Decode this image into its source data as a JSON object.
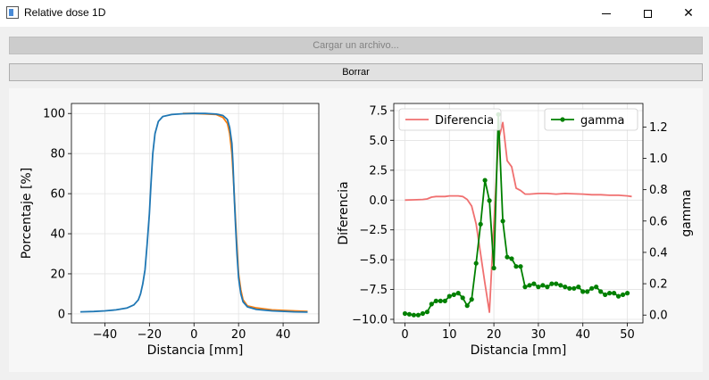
{
  "window": {
    "title": "Relative dose 1D",
    "icon": "app-window-icon",
    "controls": {
      "minimize_icon": "minimize-icon",
      "maximize_icon": "maximize-icon",
      "close_icon": "close-icon"
    }
  },
  "toolbar": {
    "load_label": "Cargar un archivo...",
    "clear_label": "Borrar"
  },
  "chart_data": [
    {
      "type": "line",
      "xlabel": "Distancia [mm]",
      "ylabel": "Porcentaje [%]",
      "xlim": [
        -55,
        56
      ],
      "ylim": [
        -4.5,
        105
      ],
      "xticks": [
        -40,
        -20,
        0,
        20,
        40
      ],
      "yticks": [
        0,
        20,
        40,
        60,
        80,
        100
      ],
      "grid": true,
      "series": [
        {
          "color": "#ff7f0e",
          "points": [
            [
              -5,
              100
            ],
            [
              0,
              100
            ],
            [
              5,
              99.8
            ],
            [
              10,
              99.5
            ],
            [
              13,
              98
            ],
            [
              15,
              95
            ],
            [
              16,
              90
            ],
            [
              17,
              80
            ],
            [
              17.8,
              65
            ],
            [
              18.5,
              50
            ],
            [
              19.2,
              35
            ],
            [
              20,
              20
            ],
            [
              21,
              12
            ],
            [
              22,
              7
            ],
            [
              24,
              4
            ],
            [
              28,
              3
            ],
            [
              35,
              2
            ],
            [
              45,
              1.5
            ],
            [
              51,
              1.2
            ]
          ]
        },
        {
          "color": "#1f77b4",
          "points": [
            [
              -51,
              1
            ],
            [
              -45,
              1.2
            ],
            [
              -40,
              1.5
            ],
            [
              -35,
              2
            ],
            [
              -30,
              3
            ],
            [
              -27,
              4.5
            ],
            [
              -25,
              7
            ],
            [
              -24,
              10
            ],
            [
              -23,
              15
            ],
            [
              -22,
              22
            ],
            [
              -21,
              35
            ],
            [
              -20,
              50
            ],
            [
              -19.3,
              65
            ],
            [
              -18.5,
              80
            ],
            [
              -17.5,
              90
            ],
            [
              -16,
              96
            ],
            [
              -14,
              98.5
            ],
            [
              -10,
              99.5
            ],
            [
              -5,
              99.9
            ],
            [
              0,
              100
            ],
            [
              5,
              100
            ],
            [
              10,
              99.7
            ],
            [
              13,
              99
            ],
            [
              15,
              97
            ],
            [
              16,
              93
            ],
            [
              17,
              85
            ],
            [
              17.5,
              75
            ],
            [
              18,
              60
            ],
            [
              18.6,
              45
            ],
            [
              19.3,
              30
            ],
            [
              20,
              18
            ],
            [
              21,
              10
            ],
            [
              22,
              6
            ],
            [
              24,
              3.5
            ],
            [
              28,
              2.2
            ],
            [
              35,
              1.5
            ],
            [
              45,
              1
            ],
            [
              51,
              0.9
            ]
          ]
        }
      ]
    },
    {
      "type": "line",
      "xlabel": "Distancia [mm]",
      "ylabel": "Diferencia",
      "ylabel_right": "gamma",
      "xlim": [
        -2.5,
        53.5
      ],
      "ylim": [
        -10.3,
        8.1
      ],
      "ylim_right": [
        -0.05,
        1.35
      ],
      "xticks": [
        0,
        10,
        20,
        30,
        40,
        50
      ],
      "yticks": [
        -10.0,
        -7.5,
        -5.0,
        -2.5,
        0.0,
        2.5,
        5.0,
        7.5
      ],
      "yticks_right": [
        0.0,
        0.2,
        0.4,
        0.6,
        0.8,
        1.0,
        1.2
      ],
      "grid": true,
      "legend": [
        {
          "label": "Diferencia",
          "placement": "top-left"
        },
        {
          "label": "gamma",
          "placement": "top-right"
        }
      ],
      "series": [
        {
          "name": "Diferencia",
          "color": "#f07070",
          "axis": "left",
          "points": [
            [
              0,
              0
            ],
            [
              2,
              0.02
            ],
            [
              4,
              0.05
            ],
            [
              5,
              0.1
            ],
            [
              6,
              0.25
            ],
            [
              7,
              0.3
            ],
            [
              9,
              0.3
            ],
            [
              10,
              0.35
            ],
            [
              12,
              0.35
            ],
            [
              13,
              0.3
            ],
            [
              14,
              0.05
            ],
            [
              15,
              -0.5
            ],
            [
              16,
              -2
            ],
            [
              17,
              -4.5
            ],
            [
              18,
              -7
            ],
            [
              19,
              -9.4
            ],
            [
              20,
              -2
            ],
            [
              21,
              5
            ],
            [
              22,
              6.5
            ],
            [
              23,
              3.3
            ],
            [
              24,
              2.8
            ],
            [
              25,
              1
            ],
            [
              26,
              0.8
            ],
            [
              27,
              0.5
            ],
            [
              28,
              0.5
            ],
            [
              30,
              0.55
            ],
            [
              32,
              0.55
            ],
            [
              34,
              0.5
            ],
            [
              36,
              0.55
            ],
            [
              40,
              0.5
            ],
            [
              42,
              0.45
            ],
            [
              44,
              0.45
            ],
            [
              46,
              0.4
            ],
            [
              48,
              0.4
            ],
            [
              50,
              0.35
            ],
            [
              51,
              0.3
            ]
          ]
        },
        {
          "name": "gamma",
          "color": "#008000",
          "axis": "right",
          "points": [
            [
              0,
              0.01
            ],
            [
              1,
              0.005
            ],
            [
              2,
              0.0
            ],
            [
              3,
              0.0
            ],
            [
              4,
              0.01
            ],
            [
              5,
              0.02
            ],
            [
              6,
              0.07
            ],
            [
              7,
              0.09
            ],
            [
              8,
              0.09
            ],
            [
              9,
              0.09
            ],
            [
              10,
              0.12
            ],
            [
              11,
              0.13
            ],
            [
              12,
              0.14
            ],
            [
              13,
              0.11
            ],
            [
              14,
              0.06
            ],
            [
              15,
              0.1
            ],
            [
              16,
              0.33
            ],
            [
              17,
              0.58
            ],
            [
              18,
              0.86
            ],
            [
              19,
              0.73
            ],
            [
              20,
              0.3
            ],
            [
              21,
              1.28
            ],
            [
              22,
              0.6
            ],
            [
              23,
              0.37
            ],
            [
              24,
              0.36
            ],
            [
              25,
              0.31
            ],
            [
              26,
              0.31
            ],
            [
              27,
              0.18
            ],
            [
              28,
              0.19
            ],
            [
              29,
              0.2
            ],
            [
              30,
              0.18
            ],
            [
              31,
              0.19
            ],
            [
              32,
              0.18
            ],
            [
              33,
              0.2
            ],
            [
              34,
              0.2
            ],
            [
              35,
              0.19
            ],
            [
              36,
              0.18
            ],
            [
              37,
              0.17
            ],
            [
              38,
              0.17
            ],
            [
              39,
              0.18
            ],
            [
              40,
              0.15
            ],
            [
              41,
              0.15
            ],
            [
              42,
              0.17
            ],
            [
              43,
              0.18
            ],
            [
              44,
              0.15
            ],
            [
              45,
              0.13
            ],
            [
              46,
              0.14
            ],
            [
              47,
              0.14
            ],
            [
              48,
              0.12
            ],
            [
              49,
              0.13
            ],
            [
              50,
              0.14
            ]
          ]
        }
      ]
    }
  ]
}
